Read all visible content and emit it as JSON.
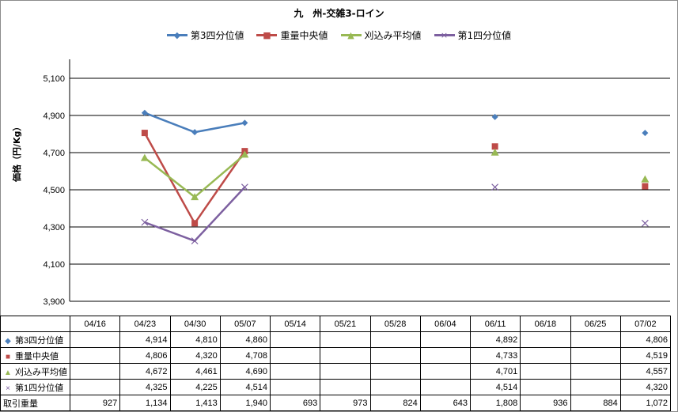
{
  "chart_data": {
    "type": "line",
    "title": "九　州-交雑3-ロイン",
    "ylabel": "価格（円/Kg）",
    "ylim": [
      3900,
      5100
    ],
    "yticks": [
      "3,900",
      "4,100",
      "4,300",
      "4,500",
      "4,700",
      "4,900",
      "5,100"
    ],
    "ytick_values": [
      3900,
      4100,
      4300,
      4500,
      4700,
      4900,
      5100
    ],
    "grid": true,
    "legend_position": "top",
    "categories": [
      "04/16",
      "04/23",
      "04/30",
      "05/07",
      "05/14",
      "05/21",
      "05/28",
      "06/04",
      "06/11",
      "06/18",
      "06/25",
      "07/02"
    ],
    "series": [
      {
        "name": "第3四分位値",
        "color": "#4a7ebb",
        "marker": "diamond",
        "values": [
          null,
          4914,
          4810,
          4860,
          null,
          null,
          null,
          null,
          4892,
          null,
          null,
          4806
        ],
        "labels": [
          "",
          "4,914",
          "4,810",
          "4,860",
          "",
          "",
          "",
          "",
          "4,892",
          "",
          "",
          "4,806"
        ]
      },
      {
        "name": "重量中央値",
        "color": "#be4b48",
        "marker": "square",
        "values": [
          null,
          4806,
          4320,
          4708,
          null,
          null,
          null,
          null,
          4733,
          null,
          null,
          4519
        ],
        "labels": [
          "",
          "4,806",
          "4,320",
          "4,708",
          "",
          "",
          "",
          "",
          "4,733",
          "",
          "",
          "4,519"
        ]
      },
      {
        "name": "刈込み平均値",
        "color": "#98b954",
        "marker": "triangle",
        "values": [
          null,
          4672,
          4461,
          4690,
          null,
          null,
          null,
          null,
          4701,
          null,
          null,
          4557
        ],
        "labels": [
          "",
          "4,672",
          "4,461",
          "4,690",
          "",
          "",
          "",
          "",
          "4,701",
          "",
          "",
          "4,557"
        ]
      },
      {
        "name": "第1四分位値",
        "color": "#7d60a0",
        "marker": "x",
        "values": [
          null,
          4325,
          4225,
          4514,
          null,
          null,
          null,
          null,
          4514,
          null,
          null,
          4320
        ],
        "labels": [
          "",
          "4,325",
          "4,225",
          "4,514",
          "",
          "",
          "",
          "",
          "4,514",
          "",
          "",
          "4,320"
        ]
      }
    ],
    "extra_row": {
      "name": "取引重量",
      "labels": [
        "927",
        "1,134",
        "1,413",
        "1,940",
        "693",
        "973",
        "824",
        "643",
        "1,808",
        "936",
        "884",
        "1,072"
      ]
    }
  }
}
